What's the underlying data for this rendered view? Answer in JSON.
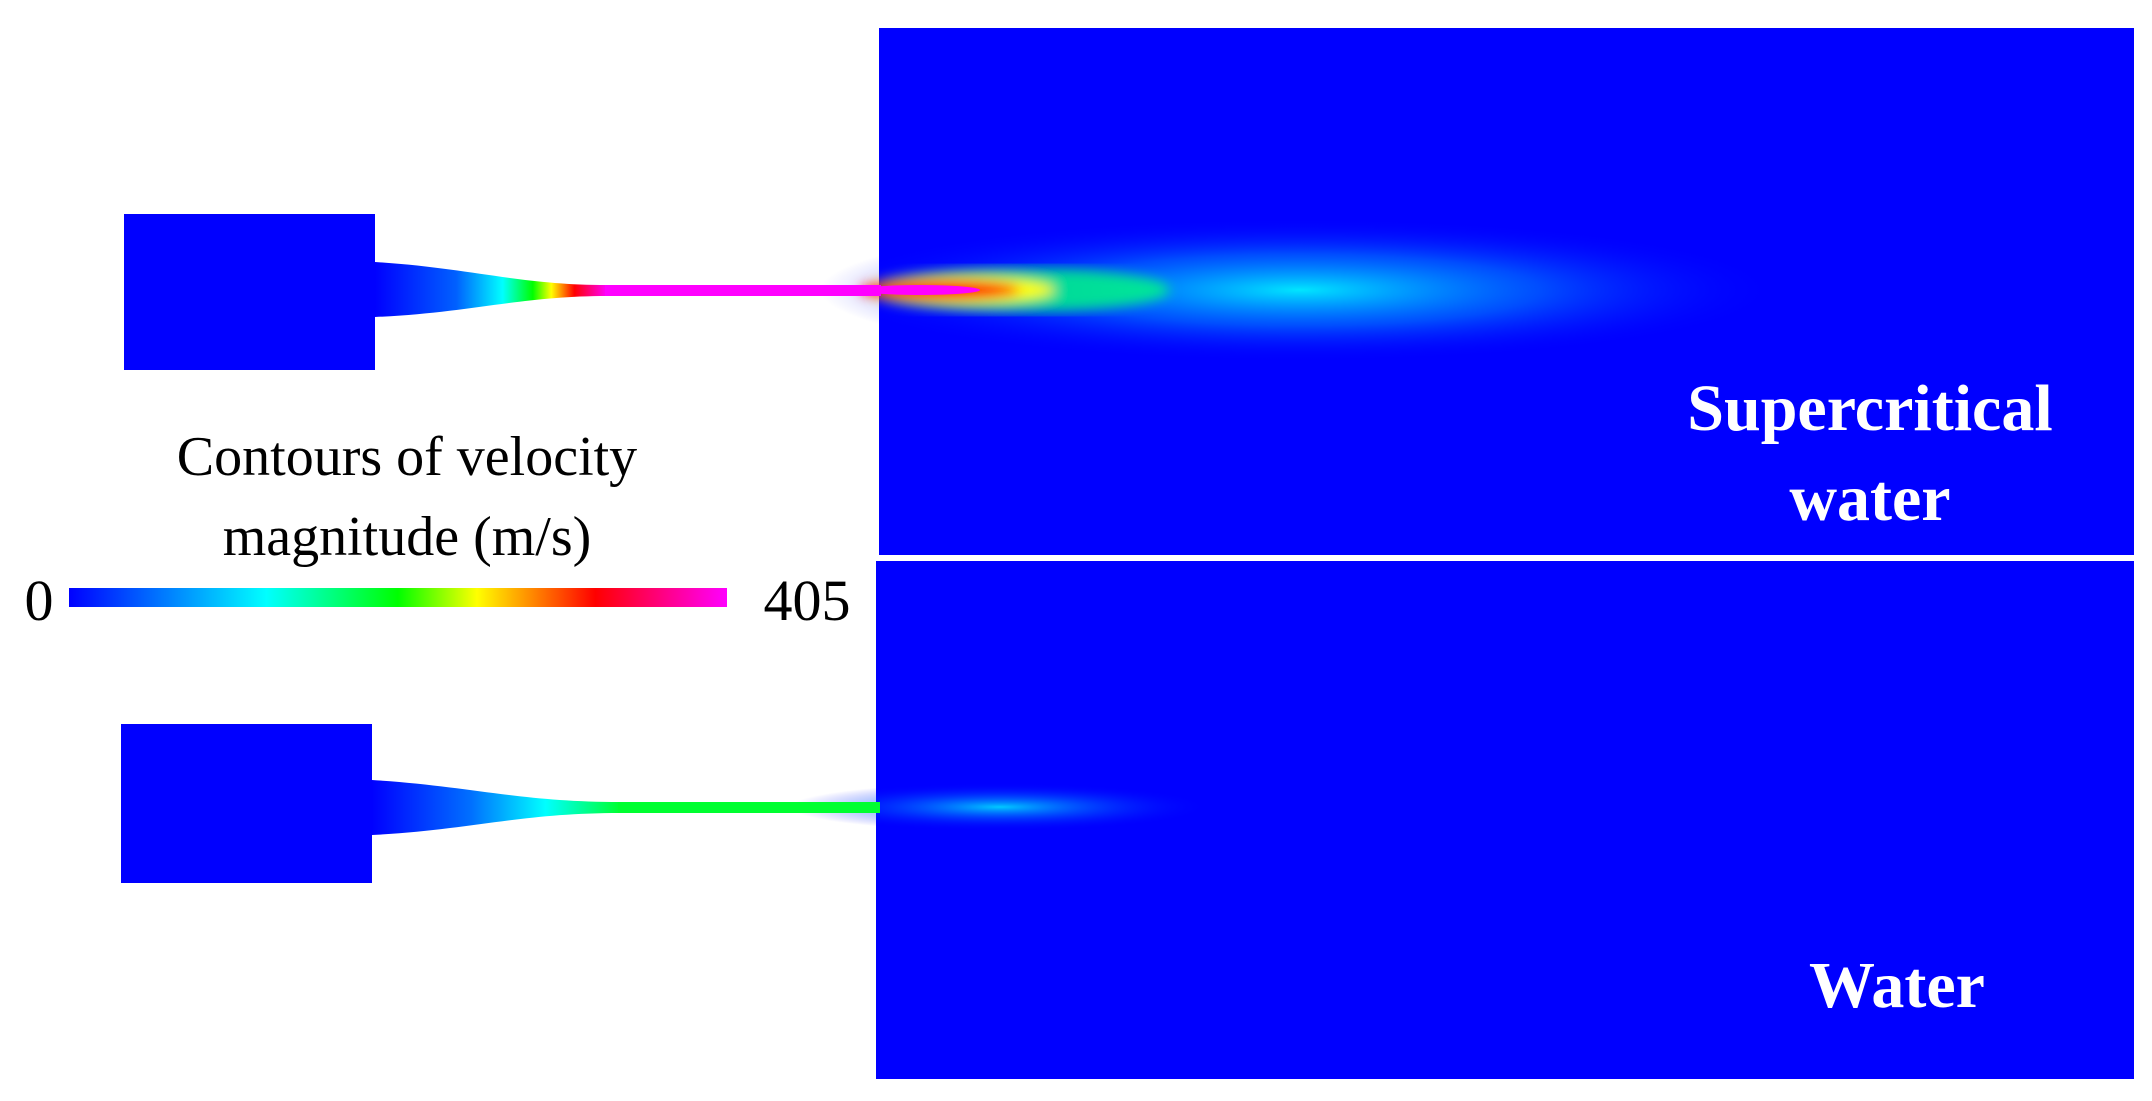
{
  "legend": {
    "title": [
      "Contours of velocity",
      "magnitude (m/s)"
    ],
    "min": 0,
    "max": 405
  },
  "panels": [
    {
      "label": [
        "Supercritical",
        "water"
      ]
    },
    {
      "label": [
        "Water"
      ]
    }
  ]
}
